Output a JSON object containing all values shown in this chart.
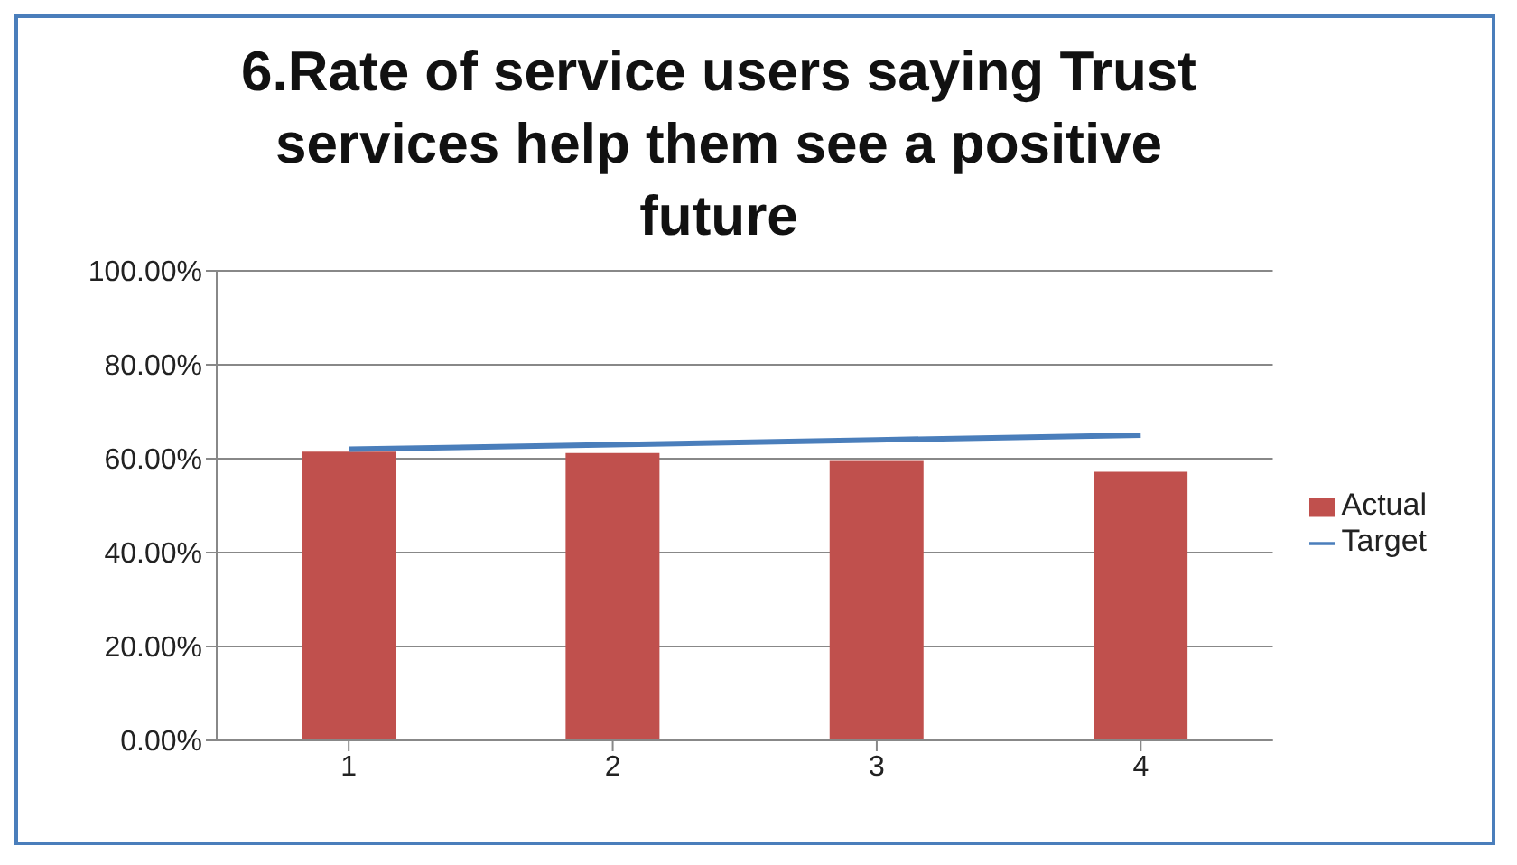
{
  "chart_data": {
    "type": "bar",
    "title": "6.Rate of service users saying Trust services help them see a positive future",
    "categories": [
      "1",
      "2",
      "3",
      "4"
    ],
    "series": [
      {
        "name": "Actual",
        "color": "#c0504d",
        "values": [
          61.5,
          61.2,
          59.5,
          57.2
        ]
      },
      {
        "name": "Target",
        "type": "line",
        "color": "#4a7ebb",
        "values": [
          62,
          63,
          64,
          65
        ]
      }
    ],
    "ylim": [
      0,
      100
    ],
    "yticks": [
      {
        "value": 0,
        "label": "0.00%"
      },
      {
        "value": 20,
        "label": "20.00%"
      },
      {
        "value": 40,
        "label": "40.00%"
      },
      {
        "value": 60,
        "label": "60.00%"
      },
      {
        "value": 80,
        "label": "80.00%"
      },
      {
        "value": 100,
        "label": "100.00%"
      }
    ],
    "grid": "y",
    "legend": "right",
    "marker": "none"
  }
}
